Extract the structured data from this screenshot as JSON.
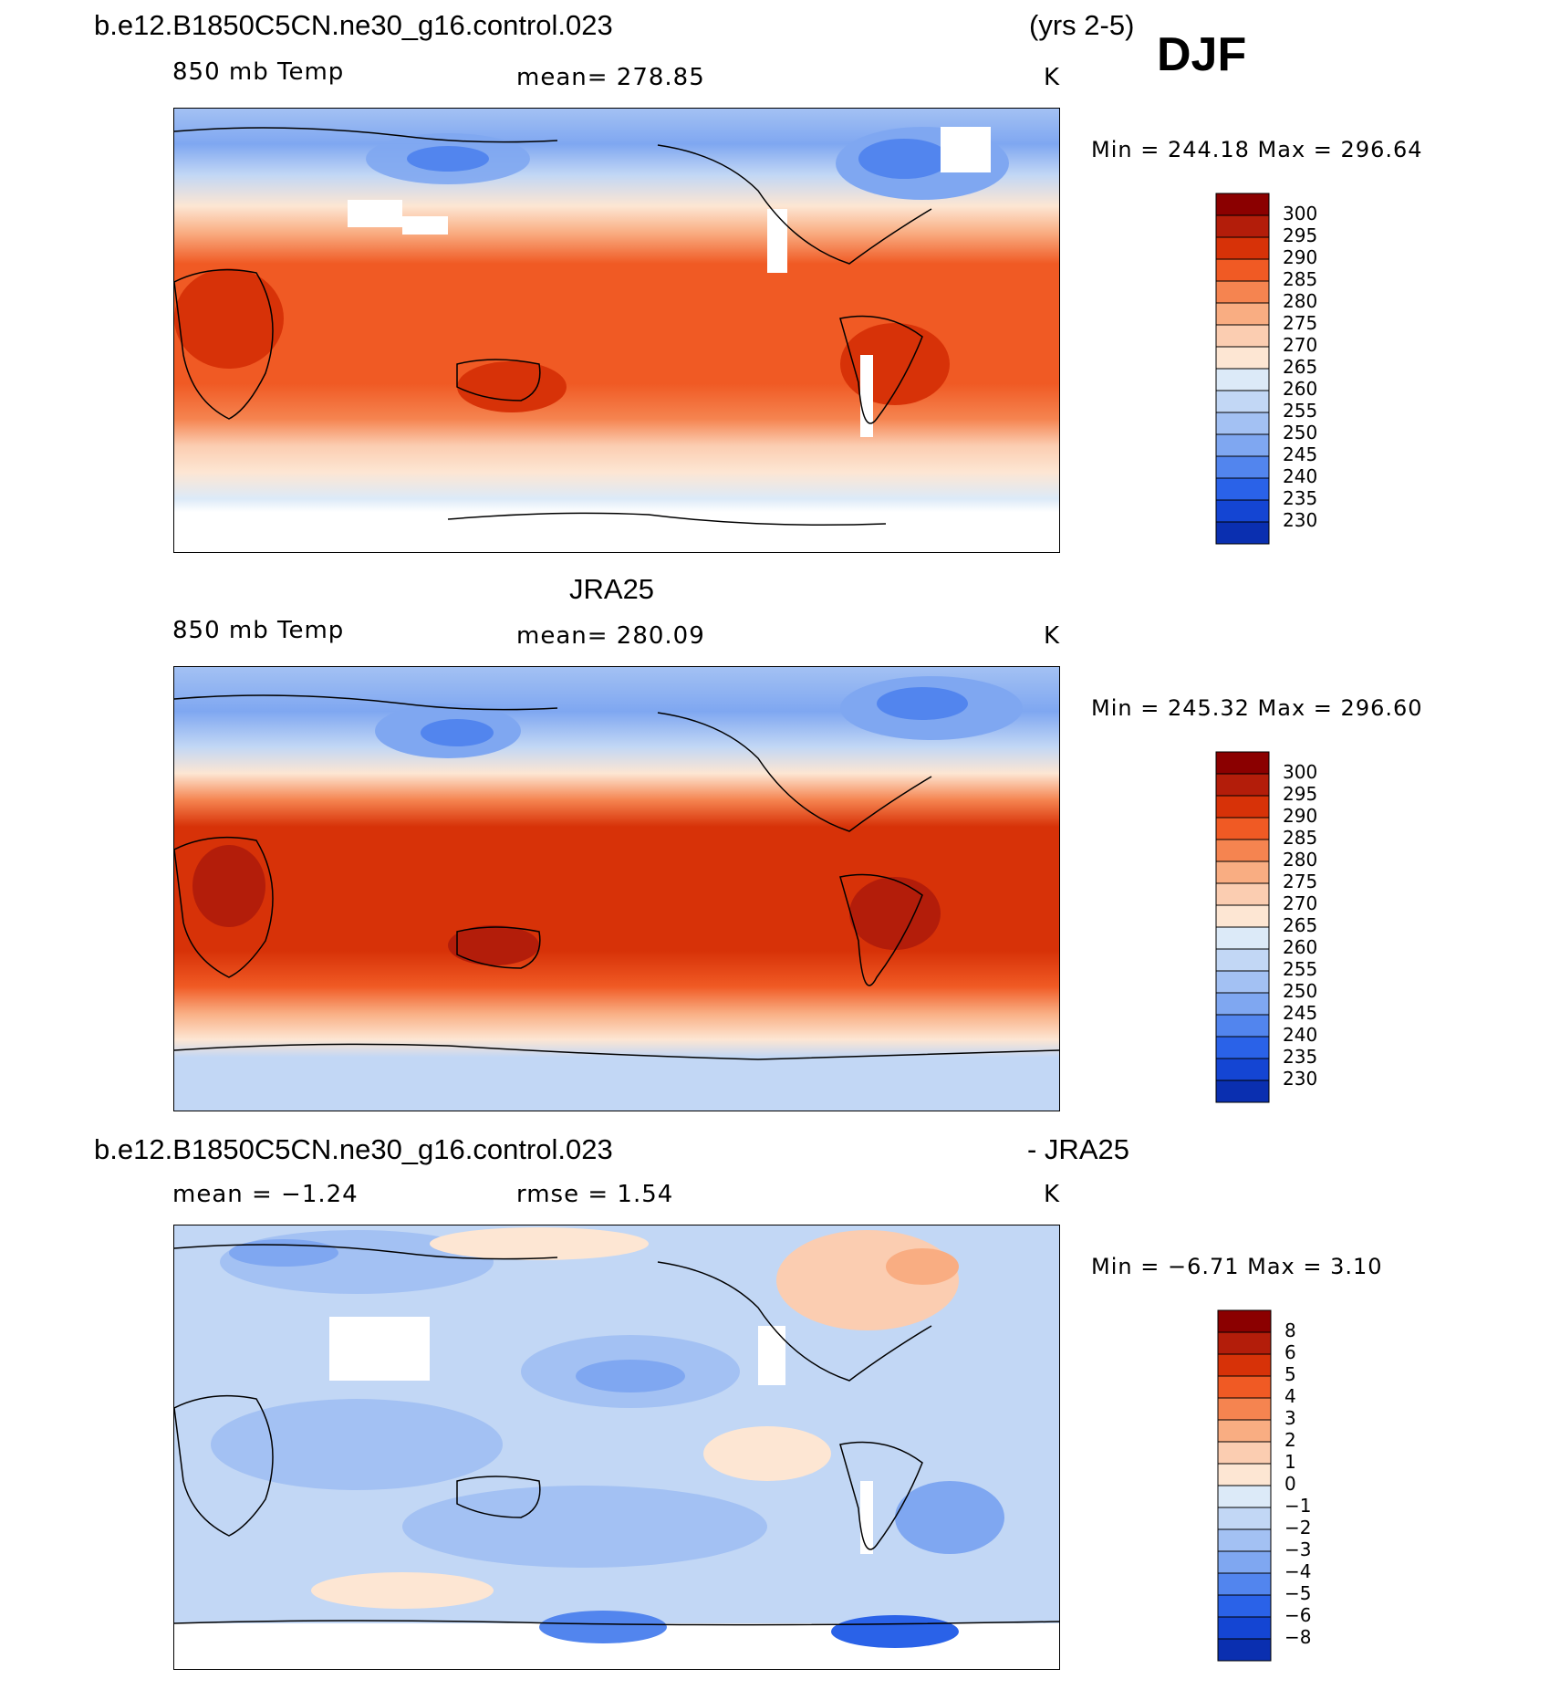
{
  "header": {
    "case_name": "b.e12.B1850C5CN.ne30_g16.control.023",
    "years": "(yrs 2-5)",
    "season": "DJF"
  },
  "panels": [
    {
      "id": "model",
      "variable": "850 mb Temp",
      "mean_text": "mean=  278.85",
      "units": "K",
      "minmax_text": "Min  =  244.18  Max  =  296.64",
      "colorbar_labels": [
        "300",
        "295",
        "290",
        "285",
        "280",
        "275",
        "270",
        "265",
        "260",
        "255",
        "250",
        "245",
        "240",
        "235",
        "230"
      ]
    },
    {
      "id": "obs",
      "title": "JRA25",
      "variable": "850 mb Temp",
      "mean_text": "mean=  280.09",
      "units": "K",
      "minmax_text": "Min  =  245.32  Max  =  296.60",
      "colorbar_labels": [
        "300",
        "295",
        "290",
        "285",
        "280",
        "275",
        "270",
        "265",
        "260",
        "255",
        "250",
        "245",
        "240",
        "235",
        "230"
      ]
    },
    {
      "id": "diff",
      "title_left": "b.e12.B1850C5CN.ne30_g16.control.023",
      "title_right": "- JRA25",
      "mean_text": "mean  =    −1.24",
      "rmse_text": "rmse  =     1.54",
      "units": "K",
      "minmax_text": "Min  =    −6.71  Max  =     3.10",
      "colorbar_labels": [
        "8",
        "6",
        "5",
        "4",
        "3",
        "2",
        "1",
        "0",
        "−1",
        "−2",
        "−3",
        "−4",
        "−5",
        "−6",
        "−8"
      ]
    }
  ],
  "colors": {
    "temp_scale": [
      "#8b0000",
      "#b31d0a",
      "#d73208",
      "#f05a24",
      "#f58450",
      "#f9ad82",
      "#fbcdb1",
      "#fde6d3",
      "#dceaf8",
      "#c2d7f5",
      "#a3c1f3",
      "#7fa7f1",
      "#5285ee",
      "#2a62e8",
      "#1445d3",
      "#0a2fb0",
      "#001f8a"
    ],
    "diff_scale": [
      "#8b0000",
      "#b31d0a",
      "#d73208",
      "#f05a24",
      "#f58450",
      "#f9ad82",
      "#fbcdb1",
      "#fde6d3",
      "#dceaf8",
      "#c2d7f5",
      "#a3c1f3",
      "#7fa7f1",
      "#5285ee",
      "#2a62e8",
      "#1445d3",
      "#0a2fb0",
      "#001f8a"
    ]
  }
}
